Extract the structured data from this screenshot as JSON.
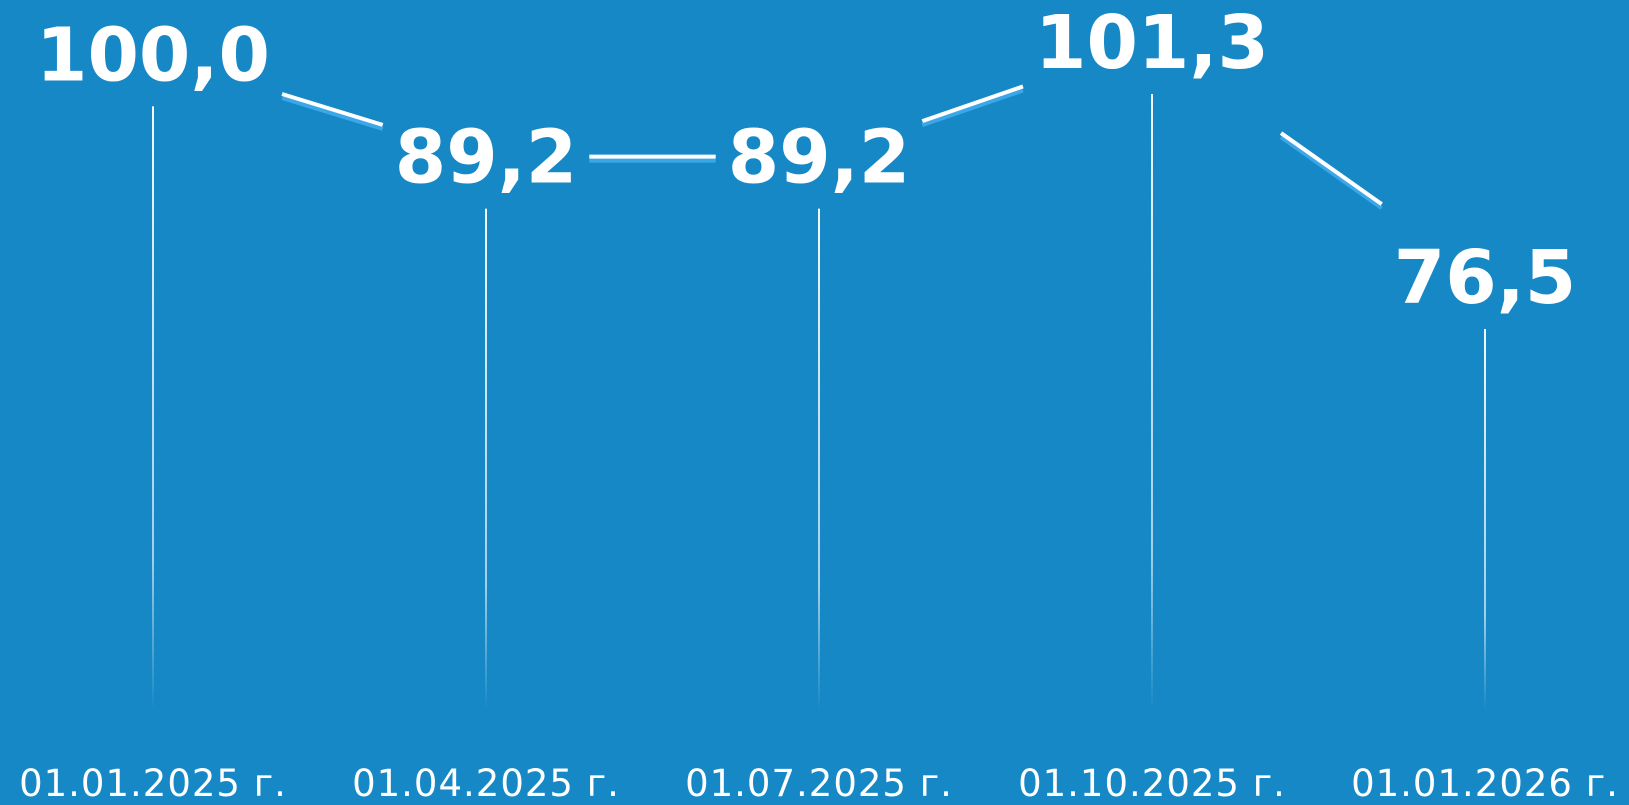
{
  "colors": {
    "background": "#1688c6",
    "line": "#ffffff",
    "line_shadow": "#3aa8e8",
    "drop_line": "#ffffff"
  },
  "chart_data": {
    "type": "line",
    "categories": [
      "01.01.2025 г.",
      "01.04.2025 г.",
      "01.07.2025 г.",
      "01.10.2025 г.",
      "01.01.2026 г."
    ],
    "values": [
      100.0,
      89.2,
      89.2,
      101.3,
      76.5
    ],
    "value_labels": [
      "100,0",
      "89,2",
      "89,2",
      "101,3",
      "76,5"
    ],
    "title": "",
    "xlabel": "",
    "ylabel": "",
    "grid": false,
    "legend": "none"
  }
}
